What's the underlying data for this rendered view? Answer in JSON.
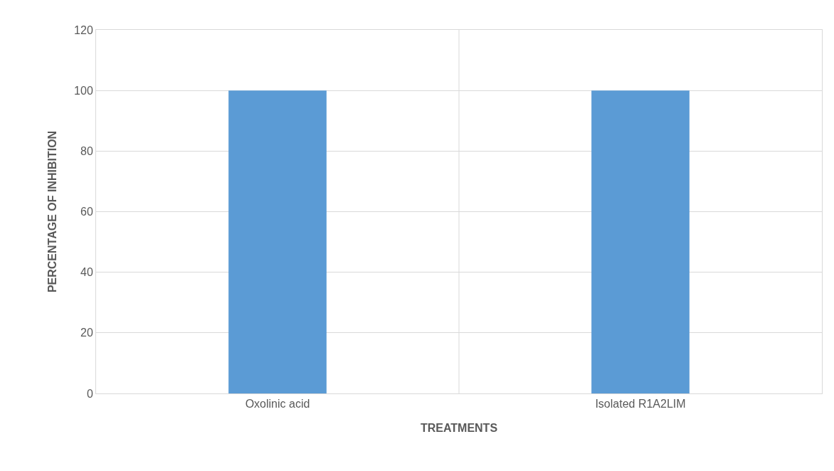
{
  "chart_data": {
    "type": "bar",
    "xlabel": "TREATMENTS",
    "ylabel": "PERCENTAGE OF INHIBITION",
    "categories": [
      "Oxolinic acid",
      "Isolated R1A2LIM"
    ],
    "series": [
      {
        "color": "#5b9bd5",
        "values": [
          100,
          100
        ]
      }
    ],
    "ylim": [
      0,
      120
    ],
    "yticks": [
      0,
      20,
      40,
      60,
      80,
      100,
      120
    ],
    "grid": "y"
  }
}
